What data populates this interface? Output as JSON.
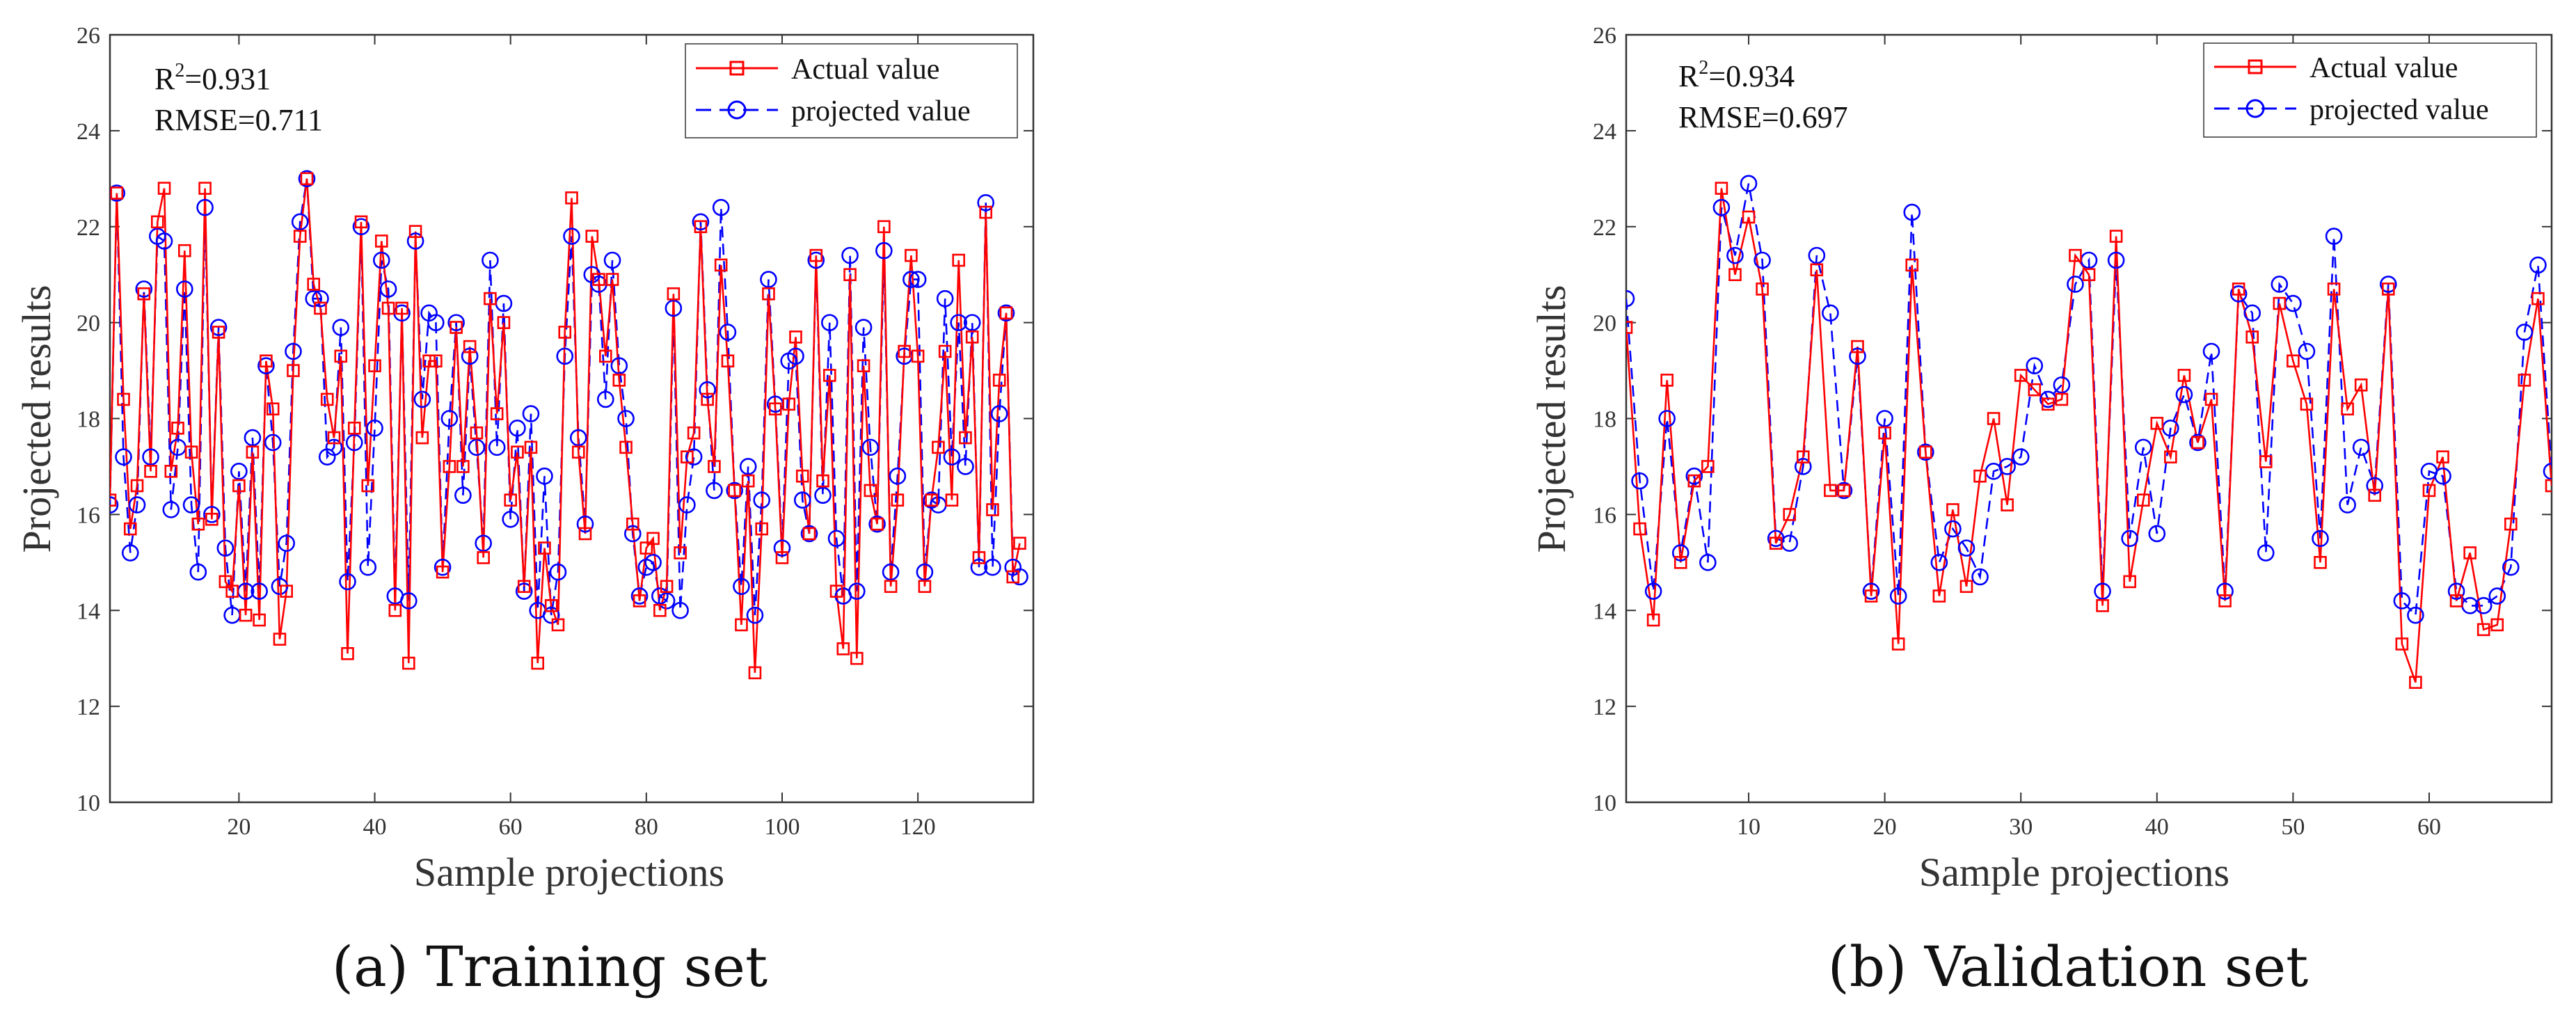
{
  "colors": {
    "actual": "#ff0000",
    "projected": "#0000ff"
  },
  "legend": {
    "actual_label": "Actual value",
    "projected_label": "projected value"
  },
  "chart_data": [
    {
      "type": "line",
      "caption": "(a) Training set",
      "xlabel": "Sample projections",
      "ylabel": "Projected results",
      "r2_text": "=0.931",
      "rmse_text": "RMSE=0.711",
      "xlim": [
        1,
        137
      ],
      "ylim": [
        10,
        26
      ],
      "xticks": [
        "20",
        "40",
        "60",
        "80",
        "100",
        "120"
      ],
      "yticks": [
        "10",
        "12",
        "14",
        "16",
        "18",
        "20",
        "22",
        "24",
        "26"
      ],
      "series": [
        {
          "name": "Actual value",
          "values": [
            16.3,
            22.7,
            18.4,
            15.7,
            16.6,
            20.6,
            16.9,
            22.1,
            22.8,
            16.9,
            17.8,
            21.5,
            17.3,
            15.8,
            22.8,
            15.9,
            19.8,
            14.6,
            14.4,
            16.6,
            13.9,
            17.3,
            13.8,
            19.2,
            18.2,
            13.4,
            14.4,
            19.0,
            21.8,
            23.0,
            20.8,
            20.3,
            18.4,
            17.6,
            19.3,
            13.1,
            17.8,
            22.1,
            16.6,
            19.1,
            21.7,
            20.3,
            14.0,
            20.3,
            12.9,
            21.9,
            17.6,
            19.2,
            19.2,
            14.8,
            17.0,
            19.9,
            17.0,
            19.5,
            17.7,
            15.1,
            20.5,
            18.1,
            20.0,
            16.3,
            17.3,
            14.5,
            17.4,
            12.9,
            15.3,
            14.1,
            13.7,
            19.8,
            22.6,
            17.3,
            15.6,
            21.8,
            20.9,
            19.3,
            20.9,
            18.8,
            17.4,
            15.8,
            14.2,
            15.3,
            15.5,
            14.0,
            14.5,
            20.6,
            15.2,
            17.2,
            17.7,
            22.0,
            18.4,
            17.0,
            21.2,
            19.2,
            16.5,
            13.7,
            16.7,
            12.7,
            15.7,
            20.6,
            18.2,
            15.1,
            18.3,
            19.7,
            16.8,
            15.6,
            21.4,
            16.7,
            18.9,
            14.4,
            13.2,
            21.0,
            13.0,
            19.1,
            16.5,
            15.8,
            22.0,
            14.5,
            16.3,
            19.4,
            21.4,
            19.3,
            14.5,
            16.3,
            17.4,
            19.4,
            16.3,
            21.3,
            17.6,
            19.7,
            15.1,
            22.3,
            16.1,
            18.8,
            20.2,
            14.7,
            15.4
          ]
        },
        {
          "name": "projected value",
          "values": [
            16.2,
            22.7,
            17.2,
            15.2,
            16.2,
            20.7,
            17.2,
            21.8,
            21.7,
            16.1,
            17.4,
            20.7,
            16.2,
            14.8,
            22.4,
            16.0,
            19.9,
            15.3,
            13.9,
            16.9,
            14.4,
            17.6,
            14.4,
            19.1,
            17.5,
            14.5,
            15.4,
            19.4,
            22.1,
            23.0,
            20.5,
            20.5,
            17.2,
            17.4,
            19.9,
            14.6,
            17.5,
            22.0,
            14.9,
            17.8,
            21.3,
            20.7,
            14.3,
            20.2,
            14.2,
            21.7,
            18.4,
            20.2,
            20.0,
            14.9,
            18.0,
            20.0,
            16.4,
            19.3,
            17.4,
            15.4,
            21.3,
            17.4,
            20.4,
            15.9,
            17.8,
            14.4,
            18.1,
            14.0,
            16.8,
            13.9,
            14.8,
            19.3,
            21.8,
            17.6,
            15.8,
            21.0,
            20.8,
            18.4,
            21.3,
            19.1,
            18.0,
            15.6,
            14.3,
            14.9,
            15.0,
            14.3,
            14.2,
            20.3,
            14.0,
            16.2,
            17.2,
            22.1,
            18.6,
            16.5,
            22.4,
            19.8,
            16.5,
            14.5,
            17.0,
            13.9,
            16.3,
            20.9,
            18.3,
            15.3,
            19.2,
            19.3,
            16.3,
            15.6,
            21.3,
            16.4,
            20.0,
            15.5,
            14.3,
            21.4,
            14.4,
            19.9,
            17.4,
            15.8,
            21.5,
            14.8,
            16.8,
            19.3,
            20.9,
            20.9,
            14.8,
            16.3,
            16.2,
            20.5,
            17.2,
            20.0,
            17.0,
            20.0,
            14.9,
            22.5,
            14.9,
            18.1,
            20.2,
            14.9,
            14.7
          ]
        }
      ]
    },
    {
      "type": "line",
      "caption": "(b) Validation set",
      "xlabel": "Sample projections",
      "ylabel": "Projected results",
      "r2_text": "=0.934",
      "rmse_text": "RMSE=0.697",
      "xlim": [
        1,
        69
      ],
      "ylim": [
        10,
        26
      ],
      "xticks": [
        "10",
        "20",
        "30",
        "40",
        "50",
        "60"
      ],
      "yticks": [
        "10",
        "12",
        "14",
        "16",
        "18",
        "20",
        "22",
        "24",
        "26"
      ],
      "series": [
        {
          "name": "Actual value",
          "values": [
            19.9,
            15.7,
            13.8,
            18.8,
            15.0,
            16.7,
            17.0,
            22.8,
            21.0,
            22.2,
            20.7,
            15.4,
            16.0,
            17.2,
            21.1,
            16.5,
            16.5,
            19.5,
            14.3,
            17.7,
            13.3,
            21.2,
            17.3,
            14.3,
            16.1,
            14.5,
            16.8,
            18.0,
            16.2,
            18.9,
            18.6,
            18.3,
            18.4,
            21.4,
            21.0,
            14.1,
            21.8,
            14.6,
            16.3,
            17.9,
            17.2,
            18.9,
            17.5,
            18.4,
            14.2,
            20.7,
            19.7,
            17.1,
            20.4,
            19.2,
            18.3,
            15.0,
            20.7,
            18.2,
            18.7,
            16.4,
            20.7,
            13.3,
            12.5,
            16.5,
            17.2,
            14.2,
            15.2,
            13.6,
            13.7,
            15.8,
            18.8,
            20.5,
            16.6
          ]
        },
        {
          "name": "projected value",
          "values": [
            20.5,
            16.7,
            14.4,
            18.0,
            15.2,
            16.8,
            15.0,
            22.4,
            21.4,
            22.9,
            21.3,
            15.5,
            15.4,
            17.0,
            21.4,
            20.2,
            16.5,
            19.3,
            14.4,
            18.0,
            14.3,
            22.3,
            17.3,
            15.0,
            15.7,
            15.3,
            14.7,
            16.9,
            17.0,
            17.2,
            19.1,
            18.4,
            18.7,
            20.8,
            21.3,
            14.4,
            21.3,
            15.5,
            17.4,
            15.6,
            17.8,
            18.5,
            17.5,
            19.4,
            14.4,
            20.6,
            20.2,
            15.2,
            20.8,
            20.4,
            19.4,
            15.5,
            21.8,
            16.2,
            17.4,
            16.6,
            20.8,
            14.2,
            13.9,
            16.9,
            16.8,
            14.4,
            14.1,
            14.1,
            14.3,
            14.9,
            19.8,
            21.2,
            16.9
          ]
        }
      ]
    }
  ]
}
